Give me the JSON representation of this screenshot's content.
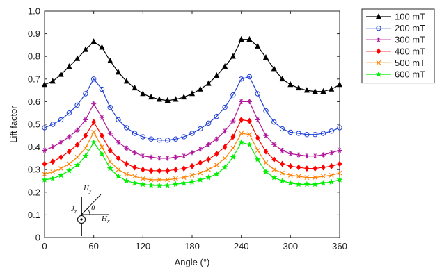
{
  "chart_data": {
    "type": "line",
    "title": "",
    "xlabel": "Angle (°)",
    "ylabel": "Lift factor",
    "xlim": [
      0,
      360
    ],
    "ylim": [
      0,
      1.0
    ],
    "xticks": [
      0,
      60,
      120,
      180,
      240,
      300,
      360
    ],
    "yticks": [
      0,
      0.1,
      0.2,
      0.3,
      0.4,
      0.5,
      0.6,
      0.7,
      0.8,
      0.9,
      1.0
    ],
    "xtick_labels": [
      "0",
      "60",
      "120",
      "180",
      "240",
      "300",
      "360"
    ],
    "ytick_labels": [
      "0",
      "0.1",
      "0.2",
      "0.3",
      "0.4",
      "0.5",
      "0.6",
      "0.7",
      "0.8",
      "0.9",
      "1.0"
    ],
    "grid": false,
    "legend_position": "outside-top-right",
    "x": [
      0,
      10,
      20,
      30,
      40,
      50,
      60,
      70,
      80,
      90,
      100,
      110,
      120,
      130,
      140,
      150,
      160,
      170,
      180,
      190,
      200,
      210,
      220,
      230,
      240,
      250,
      260,
      270,
      280,
      290,
      300,
      310,
      320,
      330,
      340,
      350,
      360
    ],
    "series": [
      {
        "name": "100 mT",
        "color": "#000000",
        "marker": "triangle-up",
        "values": [
          0.675,
          0.69,
          0.72,
          0.755,
          0.79,
          0.83,
          0.865,
          0.84,
          0.78,
          0.73,
          0.69,
          0.66,
          0.635,
          0.62,
          0.61,
          0.605,
          0.61,
          0.62,
          0.635,
          0.655,
          0.68,
          0.715,
          0.755,
          0.8,
          0.875,
          0.875,
          0.845,
          0.795,
          0.745,
          0.7,
          0.675,
          0.66,
          0.65,
          0.645,
          0.645,
          0.655,
          0.675
        ]
      },
      {
        "name": "200 mT",
        "color": "#1f3fd6",
        "marker": "circle-open",
        "values": [
          0.485,
          0.5,
          0.52,
          0.55,
          0.585,
          0.635,
          0.7,
          0.655,
          0.575,
          0.52,
          0.485,
          0.46,
          0.445,
          0.435,
          0.43,
          0.43,
          0.435,
          0.445,
          0.46,
          0.48,
          0.505,
          0.535,
          0.575,
          0.63,
          0.7,
          0.71,
          0.635,
          0.56,
          0.51,
          0.48,
          0.465,
          0.46,
          0.455,
          0.455,
          0.46,
          0.47,
          0.485
        ]
      },
      {
        "name": "300 mT",
        "color": "#b0149b",
        "marker": "asterisk",
        "values": [
          0.385,
          0.4,
          0.42,
          0.445,
          0.475,
          0.52,
          0.59,
          0.53,
          0.46,
          0.42,
          0.395,
          0.375,
          0.36,
          0.355,
          0.35,
          0.35,
          0.355,
          0.36,
          0.375,
          0.39,
          0.41,
          0.435,
          0.47,
          0.515,
          0.6,
          0.6,
          0.52,
          0.45,
          0.41,
          0.385,
          0.37,
          0.365,
          0.36,
          0.36,
          0.365,
          0.375,
          0.385
        ]
      },
      {
        "name": "400 mT",
        "color": "#ff0000",
        "marker": "diamond",
        "values": [
          0.325,
          0.335,
          0.355,
          0.38,
          0.41,
          0.45,
          0.51,
          0.45,
          0.385,
          0.35,
          0.325,
          0.31,
          0.3,
          0.295,
          0.295,
          0.295,
          0.3,
          0.305,
          0.315,
          0.33,
          0.345,
          0.37,
          0.4,
          0.445,
          0.52,
          0.515,
          0.44,
          0.38,
          0.345,
          0.325,
          0.315,
          0.31,
          0.305,
          0.305,
          0.31,
          0.315,
          0.325
        ]
      },
      {
        "name": "500 mT",
        "color": "#ff8000",
        "marker": "x",
        "values": [
          0.28,
          0.29,
          0.305,
          0.325,
          0.355,
          0.395,
          0.465,
          0.4,
          0.335,
          0.3,
          0.28,
          0.27,
          0.26,
          0.255,
          0.255,
          0.255,
          0.26,
          0.265,
          0.275,
          0.285,
          0.3,
          0.32,
          0.35,
          0.395,
          0.46,
          0.455,
          0.385,
          0.33,
          0.3,
          0.285,
          0.275,
          0.27,
          0.265,
          0.265,
          0.27,
          0.275,
          0.285
        ]
      },
      {
        "name": "600 mT",
        "color": "#00ee00",
        "marker": "star",
        "values": [
          0.255,
          0.26,
          0.275,
          0.295,
          0.32,
          0.36,
          0.42,
          0.37,
          0.305,
          0.27,
          0.25,
          0.24,
          0.235,
          0.23,
          0.23,
          0.23,
          0.235,
          0.24,
          0.245,
          0.255,
          0.265,
          0.28,
          0.31,
          0.355,
          0.42,
          0.41,
          0.345,
          0.29,
          0.265,
          0.25,
          0.24,
          0.235,
          0.235,
          0.235,
          0.24,
          0.245,
          0.255
        ]
      }
    ],
    "inset_labels": {
      "hy": "H",
      "hy_sub": "y",
      "hx": "H",
      "hx_sub": "x",
      "theta": "θ",
      "jz": "J",
      "jz_sub": "z"
    }
  }
}
